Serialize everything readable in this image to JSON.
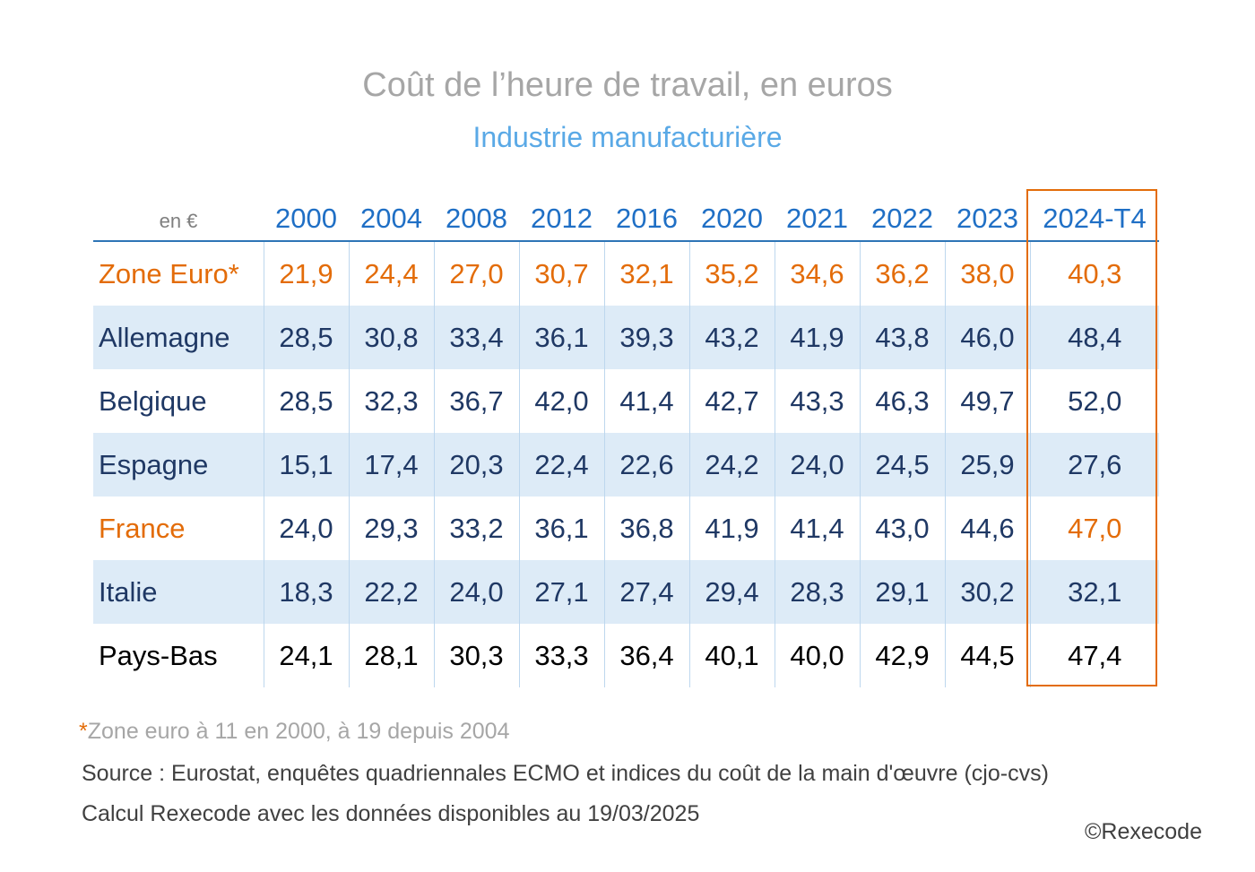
{
  "header": {
    "title": "Coût de l’heure de travail, en euros",
    "subtitle": "Industrie manufacturière"
  },
  "chart_data": {
    "type": "table",
    "title": "Coût de l’heure de travail, en euros",
    "subtitle": "Industrie manufacturière",
    "unit_label": "en €",
    "columns": [
      "2000",
      "2004",
      "2008",
      "2012",
      "2016",
      "2020",
      "2021",
      "2022",
      "2023",
      "2024-T4"
    ],
    "highlighted_column": "2024-T4",
    "rows": [
      {
        "label": "Zone Euro*",
        "values": [
          "21,9",
          "24,4",
          "27,0",
          "30,7",
          "32,1",
          "35,2",
          "34,6",
          "36,2",
          "38,0",
          "40,3"
        ]
      },
      {
        "label": "Allemagne",
        "values": [
          "28,5",
          "30,8",
          "33,4",
          "36,1",
          "39,3",
          "43,2",
          "41,9",
          "43,8",
          "46,0",
          "48,4"
        ]
      },
      {
        "label": "Belgique",
        "values": [
          "28,5",
          "32,3",
          "36,7",
          "42,0",
          "41,4",
          "42,7",
          "43,3",
          "46,3",
          "49,7",
          "52,0"
        ]
      },
      {
        "label": "Espagne",
        "values": [
          "15,1",
          "17,4",
          "20,3",
          "22,4",
          "22,6",
          "24,2",
          "24,0",
          "24,5",
          "25,9",
          "27,6"
        ]
      },
      {
        "label": "France",
        "values": [
          "24,0",
          "29,3",
          "33,2",
          "36,1",
          "36,8",
          "41,9",
          "41,4",
          "43,0",
          "44,6",
          "47,0"
        ]
      },
      {
        "label": "Italie",
        "values": [
          "18,3",
          "22,2",
          "24,0",
          "27,1",
          "27,4",
          "29,4",
          "28,3",
          "29,1",
          "30,2",
          "32,1"
        ]
      },
      {
        "label": "Pays-Bas",
        "values": [
          "24,1",
          "28,1",
          "30,3",
          "33,3",
          "36,4",
          "40,1",
          "40,0",
          "42,9",
          "44,5",
          "47,4"
        ]
      }
    ],
    "colors": {
      "header_text": "#1f6fc5",
      "highlight": "#e36c09",
      "row_band": "#ddebf7",
      "body_text": "#1f3864"
    }
  },
  "footer": {
    "note_star": "*",
    "note": "Zone euro à 11 en 2000, à 19 depuis 2004",
    "source": "Source : Eurostat, enquêtes quadriennales ECMO et indices du coût de la main d'œuvre (cjo-cvs)",
    "calc": "Calcul Rexecode avec les données disponibles au 19/03/2025",
    "copyright": "©Rexecode"
  }
}
